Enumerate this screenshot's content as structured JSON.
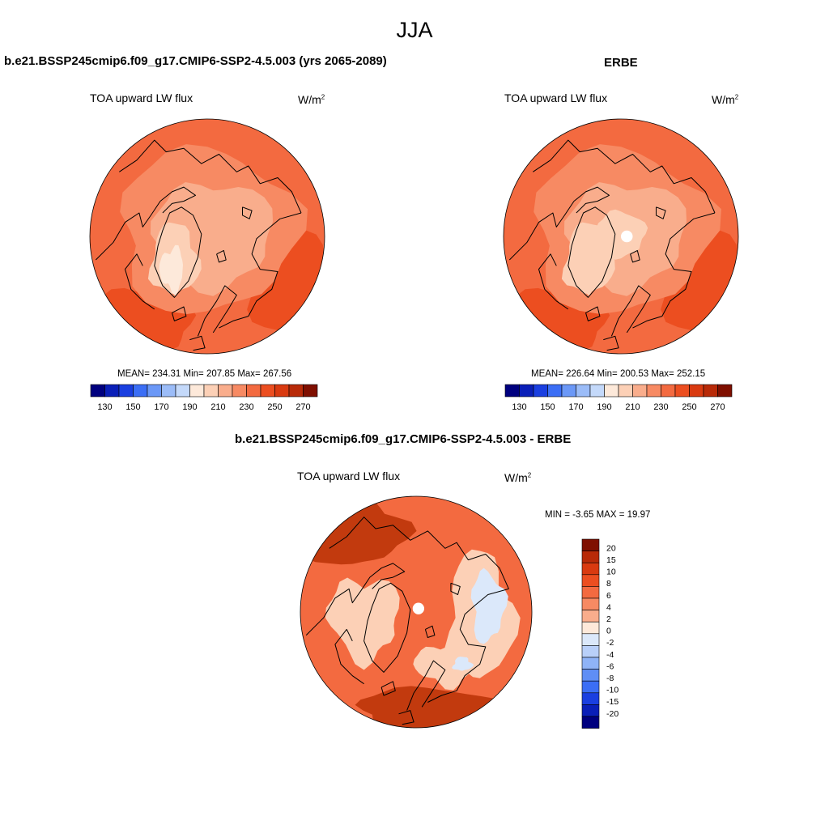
{
  "header": {
    "title": "JJA"
  },
  "panels": [
    {
      "id": "model",
      "title": "b.e21.BSSP245cmip6.f09_g17.CMIP6-SSP2-4.5.003 (yrs 2065-2089)",
      "variable": "TOA upward LW flux",
      "units_base": "W/m",
      "units_exp": "2",
      "stats": "MEAN= 234.31  Min= 207.85  Max= 267.56"
    },
    {
      "id": "obs",
      "title": "ERBE",
      "variable": "TOA upward LW flux",
      "units_base": "W/m",
      "units_exp": "2",
      "stats": "MEAN= 226.64  Min= 200.53  Max= 252.15"
    },
    {
      "id": "diff",
      "title": "b.e21.BSSP245cmip6.f09_g17.CMIP6-SSP2-4.5.003 - ERBE",
      "variable": "TOA upward LW flux",
      "units_base": "W/m",
      "units_exp": "2",
      "stats": "MIN =  -3.65 MAX =  19.97"
    }
  ],
  "colorbar_abs": {
    "colors": [
      "#00007f",
      "#0a1fb8",
      "#1a3fe0",
      "#3b6ef5",
      "#6b98f7",
      "#9bbcf8",
      "#c4d9fa",
      "#fde9da",
      "#fcd0b6",
      "#f9ad8c",
      "#f78a63",
      "#f36a40",
      "#ec4e20",
      "#d93a10",
      "#b82a08",
      "#7f0f00"
    ],
    "tick_labels": [
      "130",
      "150",
      "170",
      "190",
      "210",
      "230",
      "250",
      "270"
    ]
  },
  "colorbar_diff": {
    "colors": [
      "#7f0f00",
      "#b82a08",
      "#d93a10",
      "#ec4e20",
      "#f36a40",
      "#f78a63",
      "#f9ad8c",
      "#fde9da",
      "#dbe8fa",
      "#b9d0f9",
      "#8fb3f7",
      "#5f8ef5",
      "#3b6ef5",
      "#1a3fe0",
      "#0a1fb8",
      "#00007f"
    ],
    "tick_labels": [
      "20",
      "15",
      "10",
      "8",
      "6",
      "4",
      "2",
      "0",
      "-2",
      "-4",
      "-6",
      "-8",
      "-10",
      "-15",
      "-20"
    ]
  },
  "map_colors": {
    "ocean_low": "#f36a40",
    "mid": "#f78a63",
    "high_lat": "#f9ad8c",
    "cold": "#fcd0b6",
    "coldest": "#fde9da",
    "hot": "#ec4e20",
    "hottest": "#d93a10",
    "diff_base": "#f36a40",
    "diff_weak": "#fcd0b6",
    "diff_neg": "#dbe8fa",
    "diff_strong": "#c23a0e",
    "coast": "#000000"
  }
}
